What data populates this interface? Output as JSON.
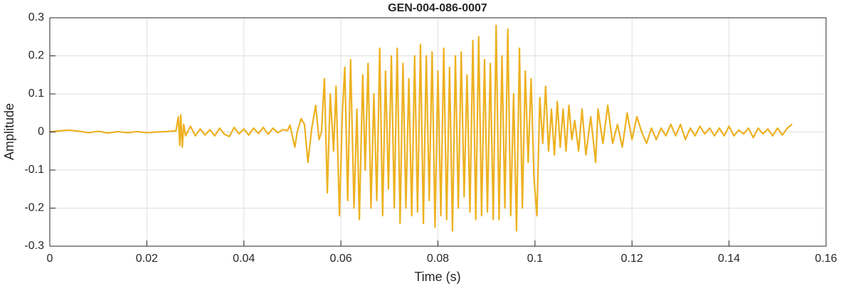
{
  "chart_data": {
    "type": "line",
    "title": "GEN-004-086-0007",
    "x_label": "Time (s)",
    "y_label": "Amplitude",
    "xlim": [
      0,
      0.16
    ],
    "xticks": [
      0,
      0.02,
      0.04,
      0.06,
      0.08,
      0.1,
      0.12,
      0.14,
      0.16
    ],
    "ylim": [
      -0.3,
      0.3
    ],
    "yticks": [
      -0.3,
      -0.2,
      -0.1,
      0,
      0.1,
      0.2,
      0.3
    ],
    "grid": true,
    "x": [
      0,
      0.002,
      0.004,
      0.006,
      0.008,
      0.01,
      0.012,
      0.014,
      0.016,
      0.018,
      0.02,
      0.022,
      0.024,
      0.026,
      0.0265,
      0.0268,
      0.027,
      0.0273,
      0.0276,
      0.028,
      0.029,
      0.03,
      0.031,
      0.032,
      0.033,
      0.034,
      0.035,
      0.036,
      0.037,
      0.038,
      0.039,
      0.04,
      0.041,
      0.042,
      0.043,
      0.044,
      0.045,
      0.046,
      0.047,
      0.048,
      0.049,
      0.0495,
      0.05,
      0.0505,
      0.051,
      0.0518,
      0.0525,
      0.0532,
      0.054,
      0.0548,
      0.0555,
      0.056,
      0.0566,
      0.0572,
      0.0578,
      0.0585,
      0.059,
      0.0597,
      0.0603,
      0.0608,
      0.0614,
      0.062,
      0.0627,
      0.0633,
      0.0638,
      0.0645,
      0.065,
      0.0656,
      0.0662,
      0.0668,
      0.0674,
      0.068,
      0.0686,
      0.0692,
      0.0698,
      0.0704,
      0.071,
      0.0716,
      0.0722,
      0.0728,
      0.0734,
      0.074,
      0.0746,
      0.0752,
      0.0758,
      0.0764,
      0.077,
      0.0776,
      0.0782,
      0.0788,
      0.0794,
      0.08,
      0.0806,
      0.0812,
      0.0818,
      0.0824,
      0.083,
      0.0836,
      0.0842,
      0.0848,
      0.0854,
      0.086,
      0.0866,
      0.0872,
      0.0878,
      0.0884,
      0.089,
      0.0896,
      0.0902,
      0.0908,
      0.0914,
      0.092,
      0.0926,
      0.0932,
      0.0938,
      0.0944,
      0.095,
      0.0956,
      0.0962,
      0.0968,
      0.0974,
      0.098,
      0.0986,
      0.0992,
      0.0998,
      0.1004,
      0.101,
      0.1016,
      0.1022,
      0.1028,
      0.1034,
      0.104,
      0.1046,
      0.1052,
      0.1058,
      0.1064,
      0.107,
      0.1076,
      0.1082,
      0.109,
      0.1097,
      0.1105,
      0.1115,
      0.1125,
      0.113,
      0.114,
      0.115,
      0.116,
      0.117,
      0.118,
      0.119,
      0.12,
      0.121,
      0.122,
      0.123,
      0.124,
      0.125,
      0.126,
      0.127,
      0.128,
      0.129,
      0.13,
      0.131,
      0.132,
      0.133,
      0.134,
      0.135,
      0.136,
      0.137,
      0.138,
      0.139,
      0.14,
      0.141,
      0.142,
      0.143,
      0.144,
      0.145,
      0.146,
      0.147,
      0.148,
      0.149,
      0.15,
      0.151,
      0.152,
      0.153
    ],
    "series": [
      {
        "color": "#EDB120",
        "values": [
          0,
          0.003,
          0.005,
          0.002,
          -0.002,
          0.002,
          -0.003,
          0.001,
          -0.002,
          0.001,
          -0.002,
          0,
          0.001,
          0.003,
          0.04,
          -0.035,
          0.045,
          -0.04,
          0.02,
          -0.01,
          0.015,
          -0.01,
          0.008,
          -0.008,
          0.006,
          -0.01,
          0.01,
          -0.006,
          -0.012,
          0.012,
          -0.005,
          0.008,
          -0.008,
          0.01,
          -0.004,
          0.012,
          -0.006,
          0.01,
          -0.002,
          0.006,
          0.004,
          0.018,
          -0.01,
          -0.04,
          0,
          0.035,
          0.02,
          -0.08,
          0.01,
          0.07,
          -0.02,
          0,
          0.14,
          -0.16,
          0.1,
          -0.05,
          0.12,
          -0.22,
          0.05,
          0.17,
          -0.18,
          0.19,
          -0.2,
          0.06,
          -0.23,
          0.15,
          -0.1,
          0.18,
          -0.2,
          0.1,
          -0.18,
          0.22,
          -0.22,
          0.16,
          -0.15,
          0.2,
          -0.2,
          0.22,
          -0.24,
          0.18,
          -0.2,
          0.14,
          -0.22,
          0.2,
          -0.21,
          0.23,
          -0.24,
          0.2,
          -0.18,
          0.21,
          -0.25,
          0.16,
          -0.22,
          0.22,
          -0.23,
          0.17,
          -0.26,
          0.2,
          -0.2,
          0.21,
          -0.17,
          0.15,
          -0.21,
          0.24,
          -0.23,
          0.25,
          -0.22,
          0.19,
          -0.21,
          0.18,
          -0.23,
          0.28,
          -0.23,
          0.2,
          -0.2,
          0.27,
          -0.22,
          0.1,
          -0.26,
          0.22,
          -0.2,
          0.16,
          -0.08,
          0.14,
          -0.12,
          -0.22,
          0.09,
          -0.03,
          0.12,
          -0.05,
          0.06,
          -0.06,
          0.08,
          -0.04,
          0.06,
          -0.05,
          0.07,
          -0.02,
          0.03,
          -0.05,
          0.06,
          -0.06,
          0.04,
          -0.08,
          0.06,
          -0.03,
          0.07,
          -0.03,
          0.02,
          -0.04,
          0.05,
          -0.02,
          0.04,
          0,
          -0.03,
          0.01,
          -0.02,
          0.01,
          -0.01,
          0.02,
          -0.01,
          0.02,
          -0.02,
          0.01,
          -0.01,
          0.015,
          -0.005,
          0.01,
          -0.01,
          0.01,
          -0.01,
          0.015,
          -0.01,
          0.005,
          -0.005,
          0.01,
          -0.015,
          0.01,
          -0.005,
          0.008,
          -0.01,
          0.01,
          -0.008,
          0.01,
          0.02
        ]
      }
    ]
  }
}
